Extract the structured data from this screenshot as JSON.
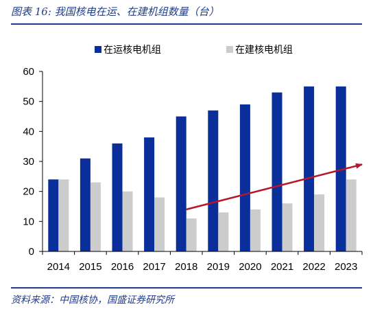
{
  "title": "图表 16:  我国核电在运、在建机组数量（台）",
  "source": "资料来源：中国核协，国盛证券研究所",
  "colors": {
    "operating": "#0a2f9b",
    "construction": "#cccccc",
    "arrow": "#b5162b",
    "accent": "#1f3c88"
  },
  "chart_data": {
    "type": "bar",
    "categories": [
      "2014",
      "2015",
      "2016",
      "2017",
      "2018",
      "2019",
      "2020",
      "2021",
      "2022",
      "2023"
    ],
    "series": [
      {
        "name": "在运核电机组",
        "values": [
          24,
          31,
          36,
          38,
          45,
          47,
          49,
          53,
          55,
          55
        ]
      },
      {
        "name": "在建核电机组",
        "values": [
          24,
          23,
          20,
          18,
          11,
          13,
          14,
          16,
          19,
          24
        ]
      }
    ],
    "yticks": [
      0,
      10,
      20,
      30,
      40,
      50,
      60
    ],
    "ylim": [
      0,
      60
    ],
    "legend_position": "top-center",
    "annotation": {
      "type": "trend-arrow",
      "from": {
        "category": "2018",
        "value": 14
      },
      "to": {
        "category": "2023",
        "value": 29
      }
    }
  }
}
